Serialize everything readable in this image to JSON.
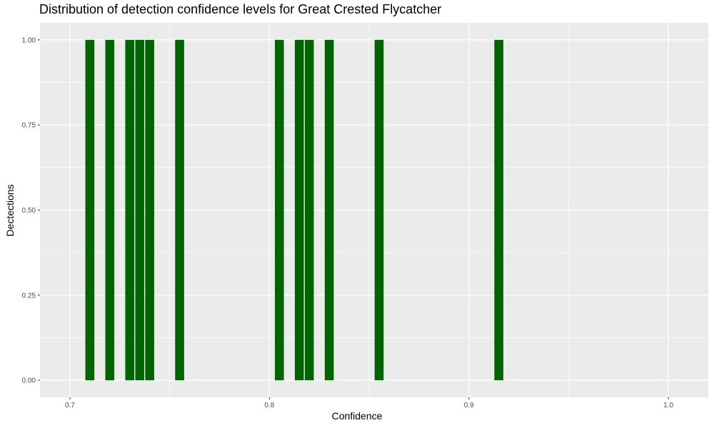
{
  "chart_data": {
    "type": "bar",
    "title": "Distribution of detection confidence levels for Great Crested Flycatcher",
    "xlabel": "Confidence",
    "ylabel": "Dectections",
    "xlim": [
      0.685,
      1.02
    ],
    "ylim": [
      -0.05,
      1.05
    ],
    "x_ticks": [
      0.7,
      0.8,
      0.9,
      1.0
    ],
    "x_tick_labels": [
      "0.7",
      "0.8",
      "0.9",
      "1.0"
    ],
    "y_ticks": [
      0,
      0.25,
      0.5,
      0.75,
      1.0
    ],
    "y_tick_labels": [
      "0.00",
      "0.25",
      "0.50",
      "0.75",
      "1.00"
    ],
    "bar_width": 0.0045,
    "grid": true,
    "colors": {
      "bar": "#006400",
      "panel": "#ebebeb",
      "grid": "#ffffff"
    },
    "x": [
      0.71,
      0.72,
      0.73,
      0.735,
      0.74,
      0.755,
      0.805,
      0.815,
      0.82,
      0.83,
      0.855,
      0.915
    ],
    "values": [
      1,
      1,
      1,
      1,
      1,
      1,
      1,
      1,
      1,
      1,
      1,
      1
    ]
  }
}
